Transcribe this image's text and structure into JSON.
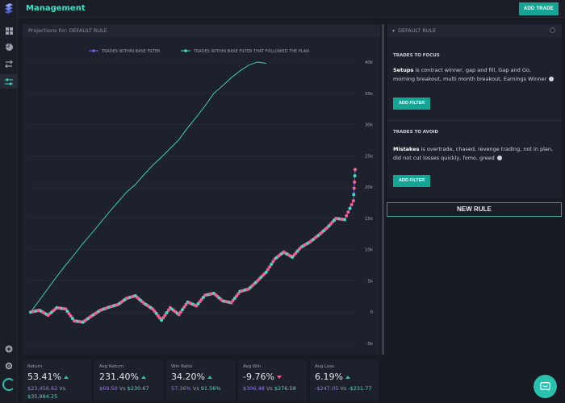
{
  "app": {
    "title": "Management",
    "add_trade_label": "ADD TRADE"
  },
  "sidebar": {
    "items": [
      {
        "icon": "dashboard-grid-icon"
      },
      {
        "icon": "pie-chart-icon"
      },
      {
        "icon": "exchange-arrows-icon"
      },
      {
        "icon": "sliders-icon",
        "active": true
      }
    ],
    "bottom": [
      {
        "icon": "add-circle-icon"
      },
      {
        "icon": "settings-gear-icon"
      }
    ]
  },
  "chart_panel": {
    "header": "Projections for: DEFAULT RULE"
  },
  "chart_data": {
    "type": "line",
    "legend_placement": "top",
    "series": [
      {
        "name": "TRADES WITHIN BASE FILTER",
        "color": "#7b5cf0"
      },
      {
        "name": "TRADES WITHIN BASE FILTER THAT FOLLOWED THE PLAN",
        "color": "#3ee0c4"
      }
    ],
    "y_ticks": [
      "40k",
      "35k",
      "30k",
      "25k",
      "20k",
      "15k",
      "10k",
      "5k",
      "0",
      "-5k"
    ],
    "ylim": [
      -5000,
      40000
    ],
    "grid": true,
    "followed_plan": [
      [
        0,
        0
      ],
      [
        5,
        1900
      ],
      [
        10,
        3800
      ],
      [
        15,
        5700
      ],
      [
        20,
        7500
      ],
      [
        25,
        9200
      ],
      [
        30,
        11000
      ],
      [
        35,
        12600
      ],
      [
        40,
        14300
      ],
      [
        45,
        16000
      ],
      [
        50,
        17600
      ],
      [
        55,
        19200
      ],
      [
        60,
        20400
      ],
      [
        65,
        22000
      ],
      [
        70,
        23500
      ],
      [
        75,
        24800
      ],
      [
        80,
        26200
      ],
      [
        85,
        27600
      ],
      [
        90,
        29500
      ],
      [
        95,
        31200
      ],
      [
        100,
        33000
      ],
      [
        105,
        35000
      ],
      [
        110,
        36200
      ],
      [
        115,
        37500
      ],
      [
        120,
        38600
      ],
      [
        125,
        39500
      ],
      [
        130,
        40000
      ],
      [
        135,
        39800
      ]
    ],
    "within_base": [
      [
        0,
        0
      ],
      [
        5,
        300
      ],
      [
        10,
        -500
      ],
      [
        15,
        700
      ],
      [
        20,
        500
      ],
      [
        25,
        -1400
      ],
      [
        30,
        -1600
      ],
      [
        35,
        -600
      ],
      [
        40,
        300
      ],
      [
        45,
        800
      ],
      [
        50,
        1200
      ],
      [
        55,
        2200
      ],
      [
        60,
        2600
      ],
      [
        65,
        1400
      ],
      [
        70,
        500
      ],
      [
        75,
        -1300
      ],
      [
        80,
        700
      ],
      [
        85,
        -400
      ],
      [
        90,
        1600
      ],
      [
        95,
        1000
      ],
      [
        100,
        2700
      ],
      [
        105,
        3000
      ],
      [
        110,
        1800
      ],
      [
        115,
        1500
      ],
      [
        120,
        3300
      ],
      [
        125,
        3700
      ],
      [
        130,
        5000
      ],
      [
        135,
        6400
      ],
      [
        140,
        8500
      ],
      [
        145,
        9600
      ],
      [
        150,
        8800
      ],
      [
        155,
        10400
      ],
      [
        160,
        11200
      ],
      [
        165,
        12300
      ],
      [
        170,
        13500
      ],
      [
        175,
        15000
      ],
      [
        180,
        14800
      ],
      [
        185,
        17800
      ],
      [
        186,
        22800
      ]
    ]
  },
  "stats": [
    {
      "label": "Return",
      "value": "53.41%",
      "trend": "up",
      "compare_a": "$23,456.62",
      "vs": "Vs",
      "compare_b": "$35,984.25"
    },
    {
      "label": "Avg Return",
      "value": "231.40%",
      "trend": "up",
      "compare_a": "$69.50",
      "vs": "Vs",
      "compare_b": "$230.67"
    },
    {
      "label": "Win Ratio",
      "value": "34.20%",
      "trend": "up",
      "compare_a": "57.36%",
      "vs": "Vs",
      "compare_b": "91.56%"
    },
    {
      "label": "Avg Win",
      "value": "-9.76%",
      "trend": "down",
      "compare_a": "$306.48",
      "vs": "Vs",
      "compare_b": "$276.58"
    },
    {
      "label": "Avg Loss",
      "value": "6.19%",
      "trend": "up",
      "compare_a": "-$247.05",
      "vs": "Vs",
      "compare_b": "-$231.77"
    }
  ],
  "rule_panel": {
    "header": "DEFAULT RULE",
    "focus_title": "TRADES TO FOCUS",
    "focus_label": "Setups",
    "focus_text": "is contract winner, gap and fill, Gap and Go, morning breakout, multi month breakout, Earnings Winner",
    "focus_button": "ADD FILTER",
    "avoid_title": "TRADES TO AVOID",
    "avoid_label": "Mistakes",
    "avoid_text": "is overtrade, chased, revenge trading, not in plan, did not cut losses quickly, fomo, greed",
    "avoid_button": "ADD FILTER"
  },
  "new_rule_label": "NEW RULE",
  "colors": {
    "accent": "#14a594",
    "teal": "#3ee0c4",
    "pink": "#f06292",
    "purple": "#7b5cf0"
  }
}
